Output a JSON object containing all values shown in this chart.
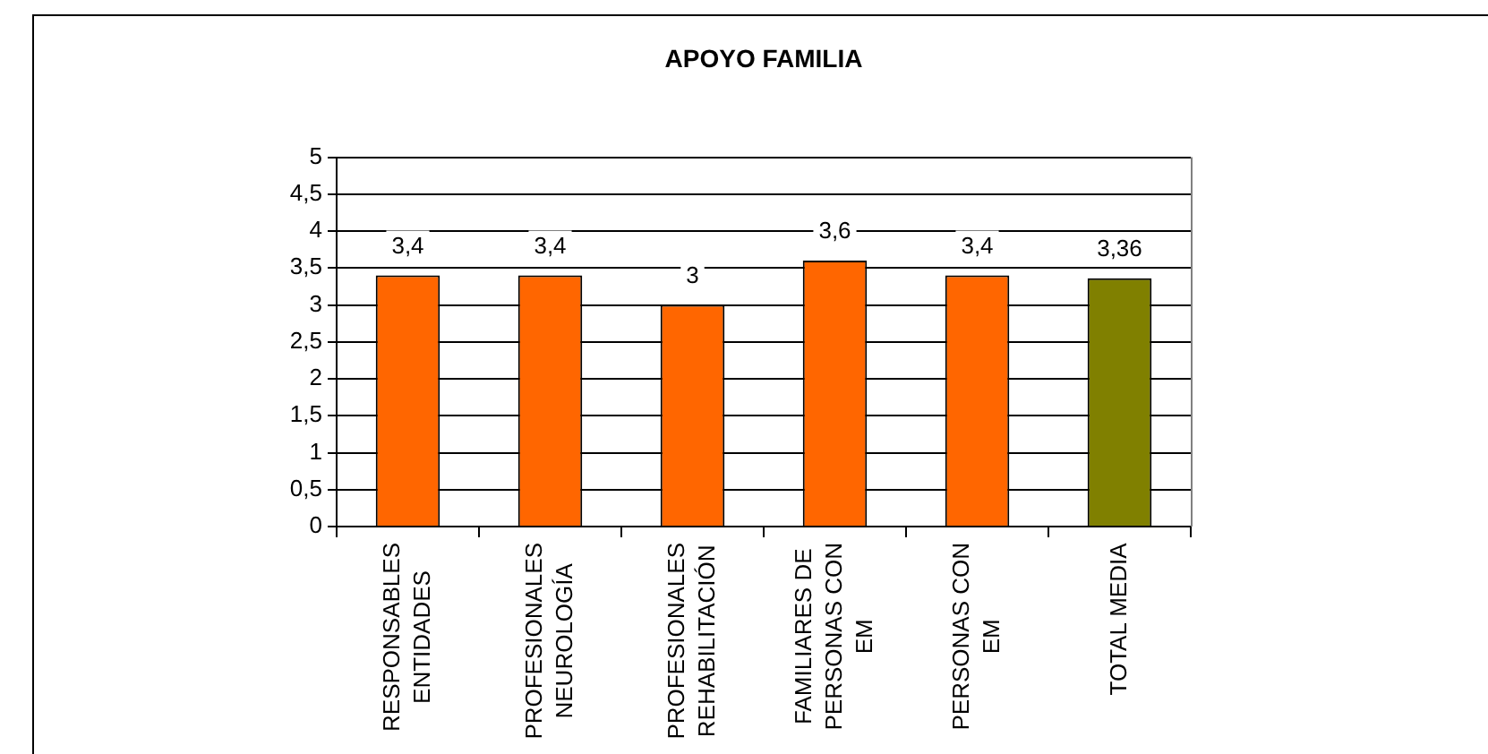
{
  "chart_data": {
    "type": "bar",
    "title": "APOYO FAMILIA",
    "categories": [
      "RESPONSABLES ENTIDADES",
      "PROFESIONALES NEUROLOGÍA",
      "PROFESIONALES REHABILITACIÓN",
      "FAMILIARES DE PERSONAS CON EM",
      "PERSONAS CON EM",
      "TOTAL MEDIA"
    ],
    "values": [
      3.4,
      3.4,
      3,
      3.6,
      3.4,
      3.36
    ],
    "colors": [
      "#ff6600",
      "#ff6600",
      "#ff6600",
      "#ff6600",
      "#ff6600",
      "#808000"
    ],
    "value_labels": [
      "3,4",
      "3,4",
      "3",
      "3,6",
      "3,4",
      "3,36"
    ],
    "ylim": [
      0,
      5
    ],
    "yticks": [
      0,
      {
        "value": 0.5,
        "label": "0,5"
      },
      1,
      {
        "value": 1.5,
        "label": "1,5"
      },
      2,
      {
        "value": 2.5,
        "label": "2,5"
      },
      3,
      {
        "value": 3.5,
        "label": "3,5"
      },
      4,
      {
        "value": 4.5,
        "label": "4,5"
      },
      5
    ],
    "grid": "y",
    "legend": false
  }
}
